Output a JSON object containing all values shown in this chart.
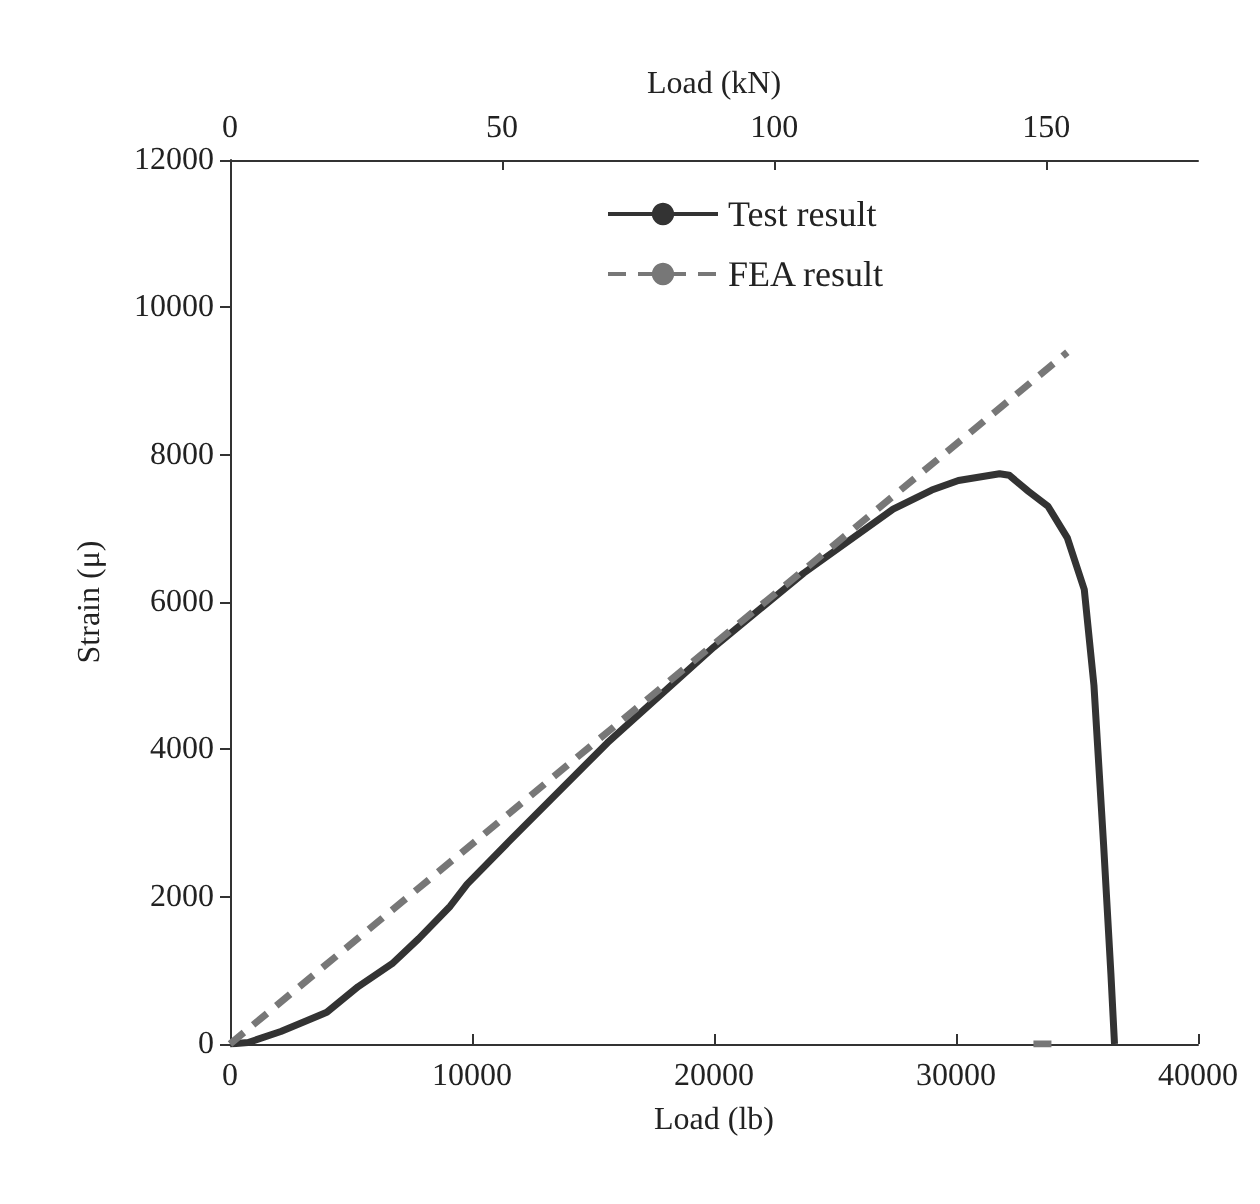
{
  "chart_data": {
    "type": "line",
    "xlabel": "Load (lb)",
    "ylabel": "Strain (μ)",
    "x2label": "Load (kN)",
    "xlim": [
      0,
      40000
    ],
    "xticks": [
      0,
      10000,
      20000,
      30000,
      40000
    ],
    "x2lim": [
      0,
      177.9
    ],
    "x2ticks": [
      0,
      50,
      100,
      150
    ],
    "ylim": [
      0,
      12000
    ],
    "yticks": [
      0,
      2000,
      4000,
      6000,
      8000,
      10000,
      12000
    ],
    "grid": false,
    "legend": "top",
    "marker": "none",
    "series": [
      {
        "name": "Test result",
        "color": "#333333",
        "line_style": "solid",
        "x": [
          0,
          750,
          2100,
          4000,
          5300,
          6700,
          7800,
          9100,
          9800,
          11500,
          15600,
          20000,
          23700,
          27400,
          29000,
          30100,
          31800,
          32200,
          33000,
          33800,
          34600,
          35300,
          35700,
          36100,
          36400,
          36550
        ],
        "values": [
          0,
          20,
          170,
          430,
          780,
          1090,
          1430,
          1870,
          2170,
          2740,
          4090,
          5390,
          6390,
          7260,
          7520,
          7650,
          7740,
          7720,
          7500,
          7300,
          6870,
          6170,
          4870,
          2700,
          960,
          0
        ]
      },
      {
        "name": "FEA result",
        "color": "#777777",
        "line_style": "dashed",
        "x": [
          0,
          34600,
          34000,
          33200,
          34300
        ],
        "values": [
          0,
          9390,
          null,
          0,
          0
        ]
      }
    ]
  }
}
